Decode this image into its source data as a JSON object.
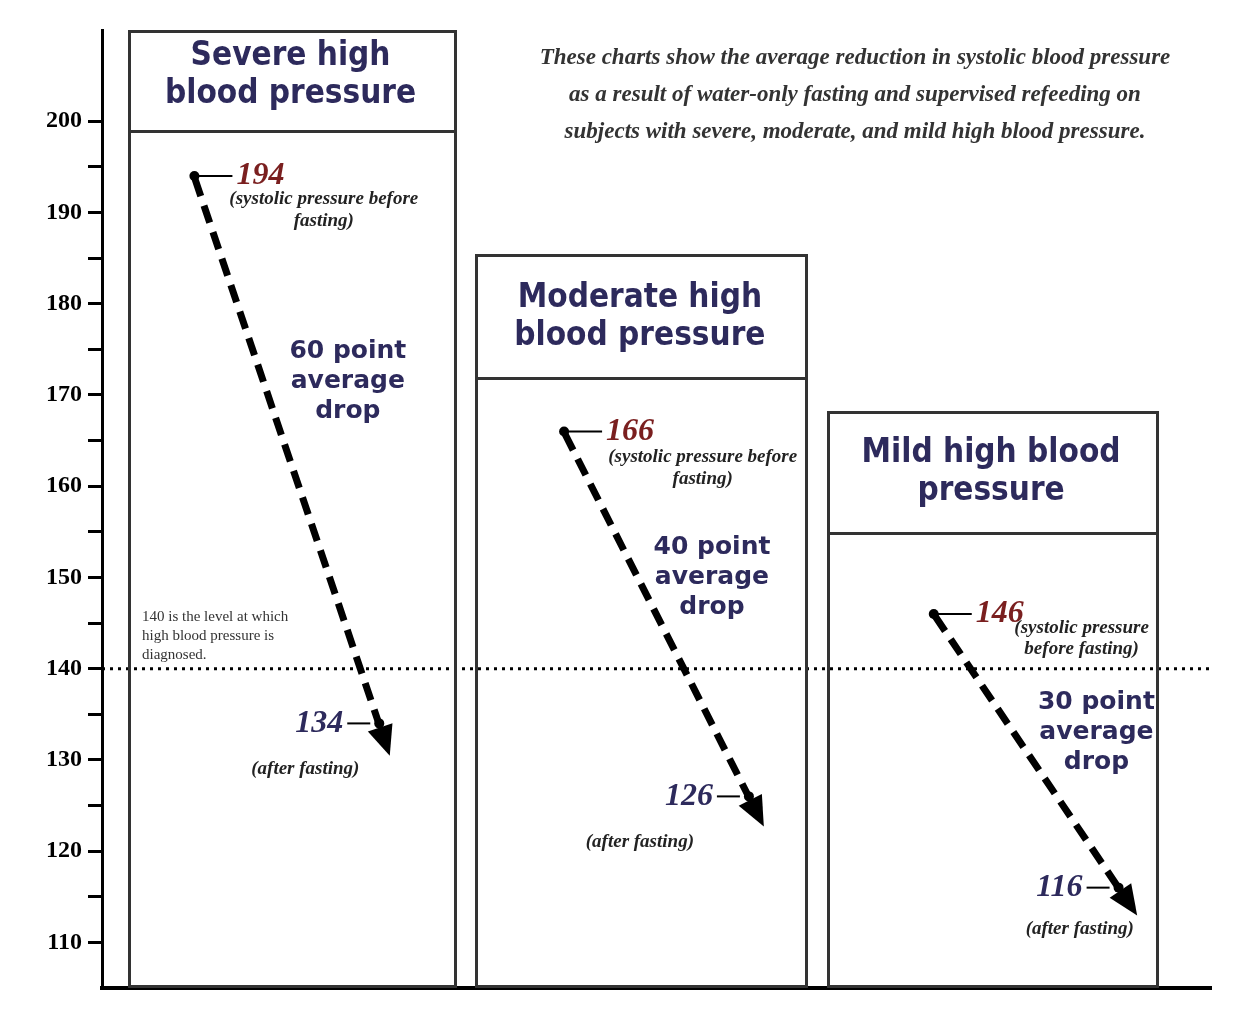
{
  "chart_data": {
    "type": "scatter",
    "ylim": [
      105,
      210
    ],
    "categories": [
      null,
      null,
      null,
      null,
      null,
      null
    ],
    "yticks": [
      110,
      {
        "value": 115,
        "label": null
      },
      120,
      {
        "value": 125,
        "label": null
      },
      130,
      {
        "value": 135,
        "label": null
      },
      140,
      {
        "value": 145,
        "label": null
      },
      150,
      {
        "value": 155,
        "label": null
      },
      160,
      {
        "value": 165,
        "label": null
      },
      170,
      {
        "value": 175,
        "label": null
      },
      180,
      {
        "value": 185,
        "label": null
      },
      190,
      {
        "value": 195,
        "label": null
      },
      200
    ],
    "tick_labels": "y",
    "grid": false,
    "legend": false,
    "marker": "circle",
    "series": [
      {
        "color": "#000000",
        "values": [
          194,
          134,
          null,
          null,
          null,
          null
        ],
        "value_labels": [
          "194",
          "134",
          null,
          null,
          null,
          null
        ]
      },
      {
        "color": "#000000",
        "values": [
          null,
          null,
          166,
          126,
          null,
          null
        ],
        "value_labels": [
          null,
          null,
          "166",
          "126",
          null,
          null
        ]
      },
      {
        "color": "#000000",
        "values": [
          null,
          null,
          null,
          null,
          146,
          116
        ],
        "value_labels": [
          null,
          null,
          null,
          null,
          "146",
          "116"
        ]
      }
    ],
    "ref_lines": [
      {
        "axis": "y",
        "value": 140,
        "label": "140 is the level at which high blood pressure is diagnosed.",
        "line_style": "dotted",
        "color": "#000000"
      }
    ],
    "annotations": [
      "These charts show the average reduction in systolic blood pressure as a result of water-only fasting and supervised refeeding on subjects with severe, moderate, and mild high blood pressure.",
      "Severe high blood pressure",
      "Moderate high blood pressure",
      "Mild high blood pressure",
      "(systolic pressure before fasting)",
      "60 point average drop",
      "(after fasting)",
      "(systolic pressure before fasting)",
      "40 point average drop",
      "(after fasting)",
      "(systolic pressure before fasting)",
      "30 point average drop",
      "(after fasting)"
    ]
  }
}
